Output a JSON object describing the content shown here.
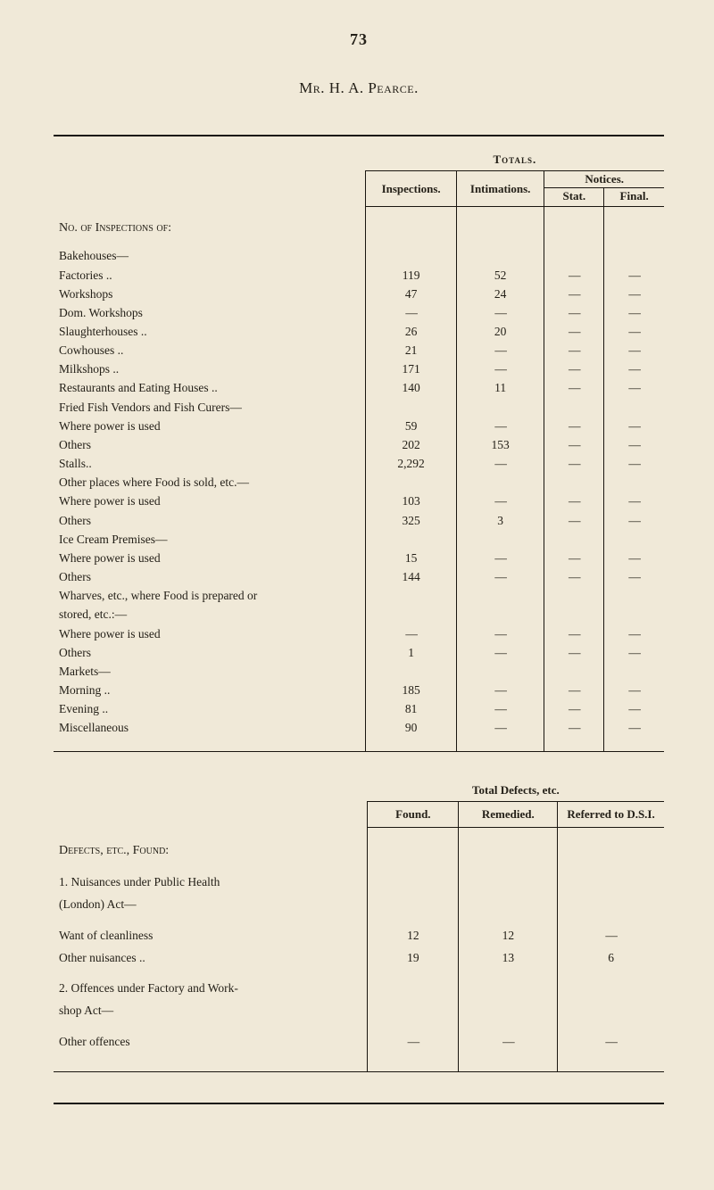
{
  "page_number": "73",
  "title": "Mr. H. A. Pearce.",
  "totals_label": "Totals.",
  "headers": {
    "inspections": "Inspections.",
    "intimations": "Intimations.",
    "notices": "Notices.",
    "stat": "Stat.",
    "final": "Final."
  },
  "section1_head": "No. of Inspections of:",
  "dash": "—",
  "rows": [
    {
      "k": "h",
      "label": "Bakehouses—"
    },
    {
      "k": "r",
      "label": "Factories ..",
      "ind": 1,
      "insp": "119",
      "int": "52",
      "stat": "—",
      "fin": "—"
    },
    {
      "k": "r",
      "label": "Workshops",
      "ind": 1,
      "insp": "47",
      "int": "24",
      "stat": "—",
      "fin": "—"
    },
    {
      "k": "r",
      "label": "Dom. Workshops",
      "ind": 1,
      "insp": "—",
      "int": "—",
      "stat": "—",
      "fin": "—"
    },
    {
      "k": "r",
      "label": "Slaughterhouses ..",
      "ind": 0,
      "insp": "26",
      "int": "20",
      "stat": "—",
      "fin": "—"
    },
    {
      "k": "r",
      "label": "Cowhouses ..",
      "ind": 0,
      "insp": "21",
      "int": "—",
      "stat": "—",
      "fin": "—"
    },
    {
      "k": "r",
      "label": "Milkshops ..",
      "ind": 0,
      "insp": "171",
      "int": "—",
      "stat": "—",
      "fin": "—"
    },
    {
      "k": "r",
      "label": "Restaurants and Eating Houses ..",
      "ind": 0,
      "insp": "140",
      "int": "11",
      "stat": "—",
      "fin": "—"
    },
    {
      "k": "h",
      "label": "Fried Fish Vendors and Fish Curers—"
    },
    {
      "k": "r",
      "label": "Where power is used",
      "ind": 1,
      "insp": "59",
      "int": "—",
      "stat": "—",
      "fin": "—"
    },
    {
      "k": "r",
      "label": "Others",
      "ind": 1,
      "insp": "202",
      "int": "153",
      "stat": "—",
      "fin": "—"
    },
    {
      "k": "r",
      "label": "Stalls..",
      "ind": 0,
      "insp": "2,292",
      "int": "—",
      "stat": "—",
      "fin": "—"
    },
    {
      "k": "h",
      "label": "Other places where Food is sold, etc.—"
    },
    {
      "k": "r",
      "label": "Where power is used",
      "ind": 1,
      "insp": "103",
      "int": "—",
      "stat": "—",
      "fin": "—"
    },
    {
      "k": "r",
      "label": "Others",
      "ind": 1,
      "insp": "325",
      "int": "3",
      "stat": "—",
      "fin": "—"
    },
    {
      "k": "h",
      "label": "Ice Cream Premises—"
    },
    {
      "k": "r",
      "label": "Where power is used",
      "ind": 1,
      "insp": "15",
      "int": "—",
      "stat": "—",
      "fin": "—"
    },
    {
      "k": "r",
      "label": "Others",
      "ind": 1,
      "insp": "144",
      "int": "—",
      "stat": "—",
      "fin": "—"
    },
    {
      "k": "h",
      "label": "Wharves, etc., where Food is prepared or"
    },
    {
      "k": "h",
      "label": "stored, etc.:—",
      "ind": 1
    },
    {
      "k": "r",
      "label": "Where power is used",
      "ind": 1,
      "insp": "—",
      "int": "—",
      "stat": "—",
      "fin": "—"
    },
    {
      "k": "r",
      "label": "Others",
      "ind": 1,
      "insp": "1",
      "int": "—",
      "stat": "—",
      "fin": "—"
    },
    {
      "k": "h",
      "label": "Markets—"
    },
    {
      "k": "r",
      "label": "Morning ..",
      "ind": 1,
      "insp": "185",
      "int": "—",
      "stat": "—",
      "fin": "—"
    },
    {
      "k": "r",
      "label": "Evening ..",
      "ind": 1,
      "insp": "81",
      "int": "—",
      "stat": "—",
      "fin": "—"
    },
    {
      "k": "r",
      "label": "Miscellaneous",
      "ind": 0,
      "insp": "90",
      "int": "—",
      "stat": "—",
      "fin": "—"
    }
  ],
  "tbl2": {
    "super": "Total Defects, etc.",
    "found": "Found.",
    "remedied": "Remedied.",
    "referred": "Referred to D.S.I.",
    "section_head": "Defects, etc., Found:",
    "rows": [
      {
        "k": "h",
        "label": "1.  Nuisances under Public Health"
      },
      {
        "k": "h",
        "label": "(London) Act—",
        "ind": 2
      },
      {
        "k": "sp"
      },
      {
        "k": "r",
        "label": "Want of cleanliness",
        "ind": 2,
        "f": "12",
        "r": "12",
        "x": "—"
      },
      {
        "k": "r",
        "label": "Other nuisances ..",
        "ind": 2,
        "f": "19",
        "r": "13",
        "x": "6"
      },
      {
        "k": "sp"
      },
      {
        "k": "h",
        "label": "2.  Offences under Factory and Work-"
      },
      {
        "k": "h",
        "label": "shop Act—",
        "ind": 2
      },
      {
        "k": "sp"
      },
      {
        "k": "r",
        "label": "Other offences",
        "ind": 2,
        "f": "—",
        "r": "—",
        "x": "—"
      }
    ]
  }
}
